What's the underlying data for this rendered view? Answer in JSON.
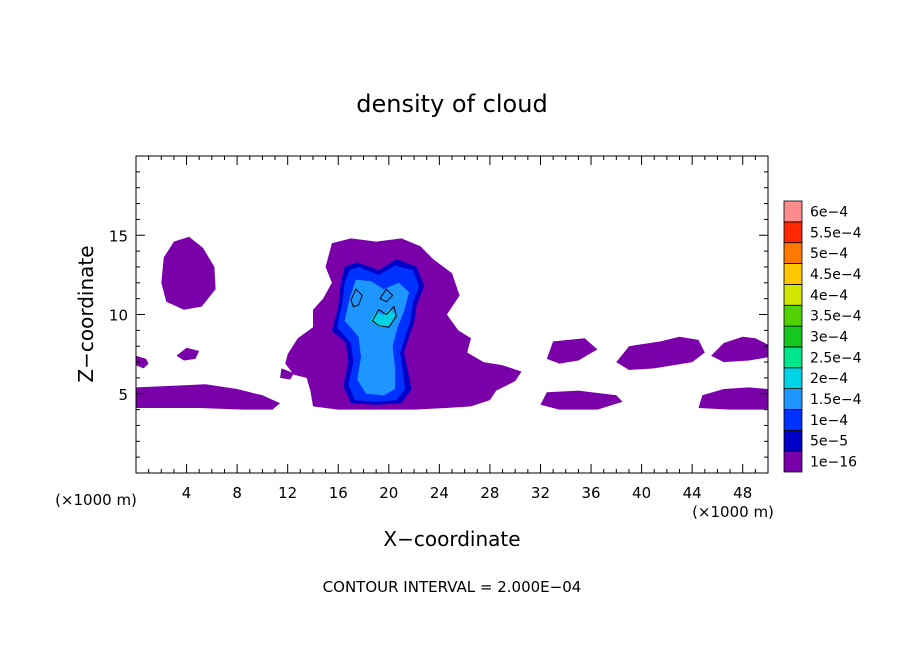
{
  "chart_data": {
    "type": "heatmap",
    "title": "density of cloud",
    "xlabel": "X−coordinate",
    "ylabel": "Z−coordinate",
    "x_unit_label": "(×1000 m)",
    "y_unit_label": "(×1000 m)",
    "footer": "CONTOUR INTERVAL = 2.000E−04",
    "xlim": [
      0,
      50
    ],
    "ylim": [
      0,
      20
    ],
    "x_ticks": [
      4,
      8,
      12,
      16,
      20,
      24,
      28,
      32,
      36,
      40,
      44,
      48
    ],
    "y_ticks": [
      5,
      10,
      15
    ],
    "colorbar": {
      "levels": [
        "1e−16",
        "5e−5",
        "1e−4",
        "1.5e−4",
        "2e−4",
        "2.5e−4",
        "3e−4",
        "3.5e−4",
        "4e−4",
        "4.5e−4",
        "5e−4",
        "5.5e−4",
        "6e−4"
      ],
      "colors": [
        "#7a00aa",
        "#0000c8",
        "#0032ff",
        "#1e96ff",
        "#00d2e6",
        "#00e68c",
        "#14c81e",
        "#50d200",
        "#d2e600",
        "#ffc800",
        "#ff7800",
        "#ff2800",
        "#ff8c8c"
      ]
    },
    "regions": [
      {
        "level": 0,
        "polygon": [
          [
            2.0,
            12.0
          ],
          [
            2.2,
            13.6
          ],
          [
            3.0,
            14.6
          ],
          [
            4.2,
            14.9
          ],
          [
            5.3,
            14.2
          ],
          [
            6.2,
            13.0
          ],
          [
            6.3,
            11.6
          ],
          [
            5.2,
            10.5
          ],
          [
            3.8,
            10.3
          ],
          [
            2.4,
            10.8
          ]
        ]
      },
      {
        "level": 0,
        "polygon": [
          [
            0.0,
            4.1
          ],
          [
            0.0,
            5.4
          ],
          [
            3.0,
            5.5
          ],
          [
            5.5,
            5.6
          ],
          [
            8.0,
            5.3
          ],
          [
            10.0,
            4.9
          ],
          [
            11.4,
            4.4
          ],
          [
            10.8,
            4.0
          ],
          [
            8.5,
            4.0
          ],
          [
            5.0,
            4.1
          ],
          [
            2.0,
            4.1
          ]
        ]
      },
      {
        "level": 0,
        "polygon": [
          [
            0.0,
            6.8
          ],
          [
            0.0,
            7.4
          ],
          [
            0.8,
            7.2
          ],
          [
            1.0,
            6.9
          ],
          [
            0.6,
            6.6
          ]
        ]
      },
      {
        "level": 0,
        "polygon": [
          [
            3.2,
            7.4
          ],
          [
            4.0,
            7.9
          ],
          [
            5.0,
            7.7
          ],
          [
            4.7,
            7.2
          ],
          [
            3.8,
            7.1
          ]
        ]
      },
      {
        "level": 0,
        "polygon": [
          [
            11.5,
            6.6
          ],
          [
            12.5,
            6.3
          ],
          [
            12.2,
            5.9
          ],
          [
            11.4,
            6.0
          ]
        ]
      },
      {
        "level": 0,
        "polygon": [
          [
            12.0,
            7.5
          ],
          [
            12.8,
            8.5
          ],
          [
            14.0,
            9.2
          ],
          [
            14.0,
            10.3
          ],
          [
            14.8,
            11.0
          ],
          [
            15.5,
            12.0
          ],
          [
            15.0,
            13.0
          ],
          [
            15.5,
            14.5
          ],
          [
            17.0,
            14.8
          ],
          [
            19.0,
            14.6
          ],
          [
            21.0,
            14.8
          ],
          [
            22.5,
            14.3
          ],
          [
            23.5,
            13.5
          ],
          [
            25.0,
            12.6
          ],
          [
            25.6,
            11.2
          ],
          [
            24.6,
            10.0
          ],
          [
            25.5,
            9.0
          ],
          [
            26.5,
            8.5
          ],
          [
            26.2,
            7.6
          ],
          [
            27.5,
            7.0
          ],
          [
            29.0,
            6.8
          ],
          [
            30.5,
            6.4
          ],
          [
            30.0,
            5.8
          ],
          [
            28.5,
            5.2
          ],
          [
            28.0,
            4.6
          ],
          [
            26.5,
            4.2
          ],
          [
            24.5,
            4.1
          ],
          [
            22.0,
            4.0
          ],
          [
            19.5,
            4.0
          ],
          [
            16.0,
            4.0
          ],
          [
            14.0,
            4.2
          ],
          [
            13.8,
            5.2
          ],
          [
            13.5,
            6.0
          ],
          [
            12.5,
            6.2
          ],
          [
            11.8,
            6.9
          ]
        ]
      },
      {
        "level": 0,
        "polygon": [
          [
            32.0,
            4.3
          ],
          [
            32.5,
            5.1
          ],
          [
            35.0,
            5.2
          ],
          [
            38.0,
            4.9
          ],
          [
            38.5,
            4.5
          ],
          [
            36.5,
            4.0
          ],
          [
            33.5,
            4.0
          ]
        ]
      },
      {
        "level": 0,
        "polygon": [
          [
            32.5,
            7.2
          ],
          [
            33.0,
            8.3
          ],
          [
            35.5,
            8.5
          ],
          [
            36.5,
            7.8
          ],
          [
            35.0,
            7.1
          ],
          [
            33.5,
            6.9
          ]
        ]
      },
      {
        "level": 0,
        "polygon": [
          [
            38.0,
            7.0
          ],
          [
            39.0,
            8.0
          ],
          [
            41.5,
            8.3
          ],
          [
            43.0,
            8.6
          ],
          [
            44.5,
            8.4
          ],
          [
            45.0,
            7.6
          ],
          [
            44.0,
            7.0
          ],
          [
            41.0,
            6.6
          ],
          [
            39.0,
            6.5
          ]
        ]
      },
      {
        "level": 0,
        "polygon": [
          [
            45.5,
            7.4
          ],
          [
            46.5,
            8.2
          ],
          [
            48.0,
            8.6
          ],
          [
            49.0,
            8.5
          ],
          [
            50.0,
            8.1
          ],
          [
            50.0,
            7.3
          ],
          [
            48.5,
            7.1
          ],
          [
            46.5,
            7.0
          ]
        ]
      },
      {
        "level": 0,
        "polygon": [
          [
            44.5,
            4.1
          ],
          [
            44.8,
            4.9
          ],
          [
            46.5,
            5.3
          ],
          [
            48.5,
            5.4
          ],
          [
            50.0,
            5.3
          ],
          [
            50.0,
            4.0
          ],
          [
            47.0,
            4.0
          ]
        ]
      },
      {
        "level": 1,
        "polygon": [
          [
            15.5,
            9.0
          ],
          [
            16.0,
            10.5
          ],
          [
            16.2,
            12.0
          ],
          [
            16.5,
            13.0
          ],
          [
            17.5,
            13.3
          ],
          [
            19.2,
            12.8
          ],
          [
            20.6,
            13.5
          ],
          [
            22.2,
            13.0
          ],
          [
            22.8,
            11.8
          ],
          [
            22.2,
            10.6
          ],
          [
            22.0,
            9.5
          ],
          [
            21.6,
            8.6
          ],
          [
            21.2,
            7.6
          ],
          [
            21.5,
            6.5
          ],
          [
            21.8,
            5.3
          ],
          [
            21.0,
            4.4
          ],
          [
            19.0,
            4.3
          ],
          [
            17.0,
            4.4
          ],
          [
            16.4,
            5.5
          ],
          [
            16.8,
            7.0
          ],
          [
            16.6,
            8.2
          ]
        ]
      },
      {
        "level": 2,
        "polygon": [
          [
            15.9,
            9.2
          ],
          [
            16.3,
            10.6
          ],
          [
            16.5,
            12.0
          ],
          [
            16.9,
            12.8
          ],
          [
            17.6,
            13.0
          ],
          [
            19.2,
            12.5
          ],
          [
            20.5,
            13.1
          ],
          [
            21.9,
            12.8
          ],
          [
            22.4,
            11.8
          ],
          [
            21.9,
            10.7
          ],
          [
            21.7,
            9.6
          ],
          [
            21.3,
            8.6
          ],
          [
            20.9,
            7.6
          ],
          [
            21.1,
            6.5
          ],
          [
            21.3,
            5.3
          ],
          [
            20.6,
            4.6
          ],
          [
            19.0,
            4.5
          ],
          [
            17.3,
            4.6
          ],
          [
            16.8,
            5.6
          ],
          [
            17.2,
            7.0
          ],
          [
            17.0,
            8.2
          ]
        ]
      },
      {
        "level": 3,
        "polygon": [
          [
            16.5,
            9.6
          ],
          [
            16.9,
            11.0
          ],
          [
            17.4,
            12.2
          ],
          [
            18.6,
            12.1
          ],
          [
            19.6,
            11.6
          ],
          [
            20.8,
            12.0
          ],
          [
            21.6,
            11.4
          ],
          [
            21.2,
            10.2
          ],
          [
            20.7,
            9.2
          ],
          [
            20.3,
            8.0
          ],
          [
            20.5,
            6.6
          ],
          [
            20.5,
            5.3
          ],
          [
            19.6,
            4.9
          ],
          [
            18.2,
            5.0
          ],
          [
            17.5,
            5.9
          ],
          [
            17.8,
            7.3
          ],
          [
            17.6,
            8.6
          ]
        ]
      },
      {
        "level": 4,
        "polygon": [
          [
            18.5,
            9.6
          ],
          [
            19.0,
            10.2
          ],
          [
            19.5,
            9.9
          ],
          [
            20.0,
            10.4
          ],
          [
            20.5,
            10.0
          ],
          [
            20.1,
            9.3
          ],
          [
            19.3,
            9.2
          ]
        ]
      }
    ],
    "contour_lines": [
      [
        [
          17.0,
          10.9
        ],
        [
          17.4,
          11.6
        ],
        [
          17.9,
          11.2
        ],
        [
          17.6,
          10.6
        ],
        [
          17.2,
          10.5
        ]
      ],
      [
        [
          18.7,
          9.6
        ],
        [
          19.2,
          10.3
        ],
        [
          19.8,
          10.0
        ],
        [
          20.4,
          10.5
        ],
        [
          20.6,
          9.9
        ],
        [
          20.0,
          9.2
        ],
        [
          19.2,
          9.3
        ]
      ],
      [
        [
          19.3,
          11.0
        ],
        [
          19.8,
          11.6
        ],
        [
          20.3,
          11.2
        ],
        [
          19.8,
          10.8
        ]
      ]
    ]
  }
}
